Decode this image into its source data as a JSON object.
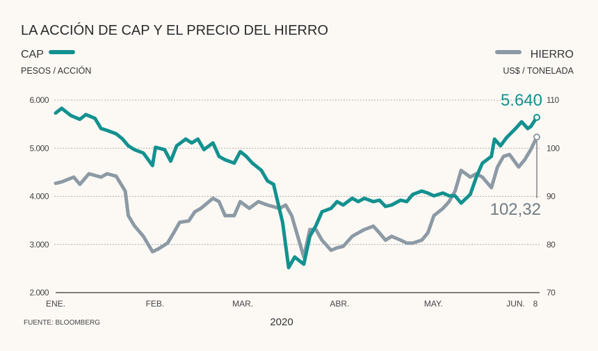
{
  "chart_data": {
    "type": "line",
    "title": "LA ACCIÓN DE CAP Y EL PRECIO DEL HIERRO",
    "xlabel": "2020",
    "source": "FUENTE: BLOOMBERG",
    "x_units": "days since Jan 1, 2020",
    "x_ticks": [
      {
        "label": "ENE.",
        "day": 0
      },
      {
        "label": "FEB.",
        "day": 31
      },
      {
        "label": "MAR.",
        "day": 60
      },
      {
        "label": "ABR.",
        "day": 92
      },
      {
        "label": "MAY.",
        "day": 123
      },
      {
        "label": "JUN.",
        "day": 152
      },
      {
        "label": "8",
        "day": 159
      }
    ],
    "left_axis": {
      "name": "CAP",
      "unit": "PESOS / ACCIÓN",
      "ylim": [
        2000,
        6000
      ],
      "ticks": [
        {
          "v": 6000,
          "label": "6.000"
        },
        {
          "v": 5000,
          "label": "5.000"
        },
        {
          "v": 4000,
          "label": "4.000"
        },
        {
          "v": 3000,
          "label": "3.000"
        },
        {
          "v": 2000,
          "label": "2.000"
        }
      ]
    },
    "right_axis": {
      "name": "HIERRO",
      "unit": "US$ / TONELADA",
      "ylim": [
        70,
        110
      ],
      "ticks": [
        {
          "v": 110,
          "label": "110"
        },
        {
          "v": 100,
          "label": "100"
        },
        {
          "v": 90,
          "label": "90"
        },
        {
          "v": 80,
          "label": "80"
        },
        {
          "v": 70,
          "label": "70"
        }
      ]
    },
    "grid": true,
    "series": [
      {
        "name": "CAP",
        "axis": "left",
        "color": "#13918f",
        "last_label": "5.640",
        "last_value": 5640,
        "points": [
          [
            0,
            5730
          ],
          [
            2,
            5830
          ],
          [
            5,
            5680
          ],
          [
            8,
            5600
          ],
          [
            10,
            5700
          ],
          [
            13,
            5620
          ],
          [
            15,
            5410
          ],
          [
            17,
            5370
          ],
          [
            20,
            5300
          ],
          [
            22,
            5200
          ],
          [
            24,
            5050
          ],
          [
            26,
            4970
          ],
          [
            29,
            4900
          ],
          [
            32,
            4640
          ],
          [
            33,
            5020
          ],
          [
            36,
            4970
          ],
          [
            38,
            4730
          ],
          [
            40,
            5050
          ],
          [
            43,
            5190
          ],
          [
            45,
            5110
          ],
          [
            47,
            5190
          ],
          [
            49,
            4970
          ],
          [
            52,
            5110
          ],
          [
            54,
            4830
          ],
          [
            56,
            4760
          ],
          [
            59,
            4690
          ],
          [
            61,
            4930
          ],
          [
            63,
            4830
          ],
          [
            65,
            4690
          ],
          [
            68,
            4540
          ],
          [
            70,
            4320
          ],
          [
            72,
            4250
          ],
          [
            75,
            3460
          ],
          [
            77,
            2520
          ],
          [
            79,
            2740
          ],
          [
            82,
            2590
          ],
          [
            84,
            3170
          ],
          [
            86,
            3390
          ],
          [
            88,
            3680
          ],
          [
            91,
            3750
          ],
          [
            93,
            3890
          ],
          [
            95,
            3820
          ],
          [
            98,
            3960
          ],
          [
            100,
            3890
          ],
          [
            102,
            3960
          ],
          [
            105,
            3890
          ],
          [
            107,
            3920
          ],
          [
            109,
            3790
          ],
          [
            111,
            3820
          ],
          [
            114,
            3920
          ],
          [
            116,
            3890
          ],
          [
            118,
            4040
          ],
          [
            121,
            4110
          ],
          [
            123,
            4070
          ],
          [
            125,
            4010
          ],
          [
            128,
            4070
          ],
          [
            130,
            4010
          ],
          [
            132,
            4010
          ],
          [
            134,
            3860
          ],
          [
            137,
            4040
          ],
          [
            139,
            4400
          ],
          [
            141,
            4690
          ],
          [
            144,
            4830
          ],
          [
            145,
            5190
          ],
          [
            147,
            5050
          ],
          [
            149,
            5220
          ],
          [
            152,
            5410
          ],
          [
            154,
            5550
          ],
          [
            156,
            5410
          ],
          [
            157,
            5450
          ],
          [
            159,
            5640
          ]
        ]
      },
      {
        "name": "HIERRO",
        "axis": "right",
        "color": "#8c9aa5",
        "last_label": "102,32",
        "last_value": 102.32,
        "points": [
          [
            0,
            92.7
          ],
          [
            2,
            93.0
          ],
          [
            6,
            94.0
          ],
          [
            8,
            92.5
          ],
          [
            11,
            94.7
          ],
          [
            15,
            94.0
          ],
          [
            17,
            94.7
          ],
          [
            20,
            94.2
          ],
          [
            23,
            91.1
          ],
          [
            24,
            86.0
          ],
          [
            26,
            83.9
          ],
          [
            29,
            81.7
          ],
          [
            32,
            78.5
          ],
          [
            34,
            79.1
          ],
          [
            37,
            80.3
          ],
          [
            39,
            82.4
          ],
          [
            41,
            84.6
          ],
          [
            44,
            84.9
          ],
          [
            46,
            86.8
          ],
          [
            48,
            87.5
          ],
          [
            52,
            89.6
          ],
          [
            54,
            88.9
          ],
          [
            56,
            86.0
          ],
          [
            59,
            86.0
          ],
          [
            61,
            88.9
          ],
          [
            64,
            87.5
          ],
          [
            67,
            88.9
          ],
          [
            70,
            88.2
          ],
          [
            74,
            87.5
          ],
          [
            76,
            88.2
          ],
          [
            78,
            86.0
          ],
          [
            80,
            81.7
          ],
          [
            82,
            77.4
          ],
          [
            84,
            83.1
          ],
          [
            86,
            83.1
          ],
          [
            88,
            80.9
          ],
          [
            91,
            78.8
          ],
          [
            93,
            79.3
          ],
          [
            95,
            79.6
          ],
          [
            98,
            81.7
          ],
          [
            100,
            82.4
          ],
          [
            102,
            83.1
          ],
          [
            105,
            83.8
          ],
          [
            107,
            82.4
          ],
          [
            109,
            80.9
          ],
          [
            111,
            81.7
          ],
          [
            114,
            80.9
          ],
          [
            116,
            80.3
          ],
          [
            118,
            80.3
          ],
          [
            121,
            80.9
          ],
          [
            123,
            82.4
          ],
          [
            125,
            86.0
          ],
          [
            128,
            87.5
          ],
          [
            130,
            88.9
          ],
          [
            132,
            91.1
          ],
          [
            134,
            95.4
          ],
          [
            137,
            94.0
          ],
          [
            139,
            94.7
          ],
          [
            141,
            94.0
          ],
          [
            144,
            91.8
          ],
          [
            146,
            96.1
          ],
          [
            148,
            98.3
          ],
          [
            150,
            98.7
          ],
          [
            153,
            96.1
          ],
          [
            155,
            97.6
          ],
          [
            157,
            99.7
          ],
          [
            159,
            102.32
          ]
        ]
      }
    ]
  }
}
